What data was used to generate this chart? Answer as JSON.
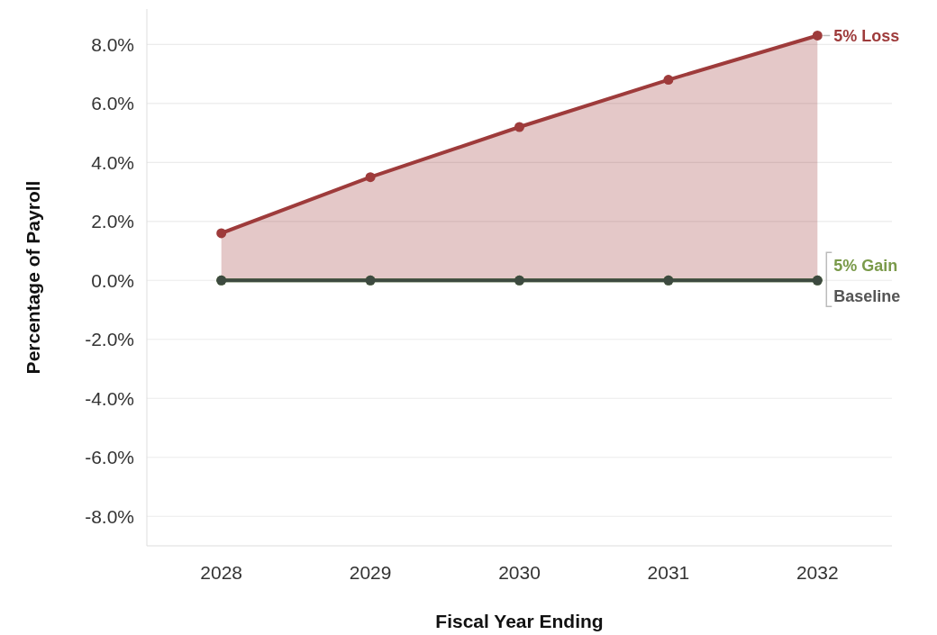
{
  "chart_data": {
    "type": "line",
    "xlabel": "Fiscal Year Ending",
    "ylabel": "Percentage of Payroll",
    "categories": [
      "2028",
      "2029",
      "2030",
      "2031",
      "2032"
    ],
    "series": [
      {
        "name": "5% Loss",
        "type": "area",
        "color": "#9e3b3b",
        "values": [
          1.6,
          3.5,
          5.2,
          6.8,
          8.3
        ]
      },
      {
        "name": "5% Gain",
        "color": "#7a9a4a",
        "values": [
          0,
          0,
          0,
          0,
          0
        ]
      },
      {
        "name": "Baseline",
        "color": "#3d4a40",
        "values": [
          0,
          0,
          0,
          0,
          0
        ]
      }
    ],
    "ylim": [
      -9,
      9.2
    ],
    "yticks": [
      {
        "value": -8,
        "label": "-8.0%"
      },
      {
        "value": -6,
        "label": "-6.0%"
      },
      {
        "value": -4,
        "label": "-4.0%"
      },
      {
        "value": -2,
        "label": "-2.0%"
      },
      {
        "value": 0,
        "label": "0.0%"
      },
      {
        "value": 2,
        "label": "2.0%"
      },
      {
        "value": 4,
        "label": "4.0%"
      },
      {
        "value": 6,
        "label": "6.0%"
      },
      {
        "value": 8,
        "label": "8.0%"
      }
    ],
    "grid": "y",
    "marker": "circle",
    "line_style": "solid"
  }
}
